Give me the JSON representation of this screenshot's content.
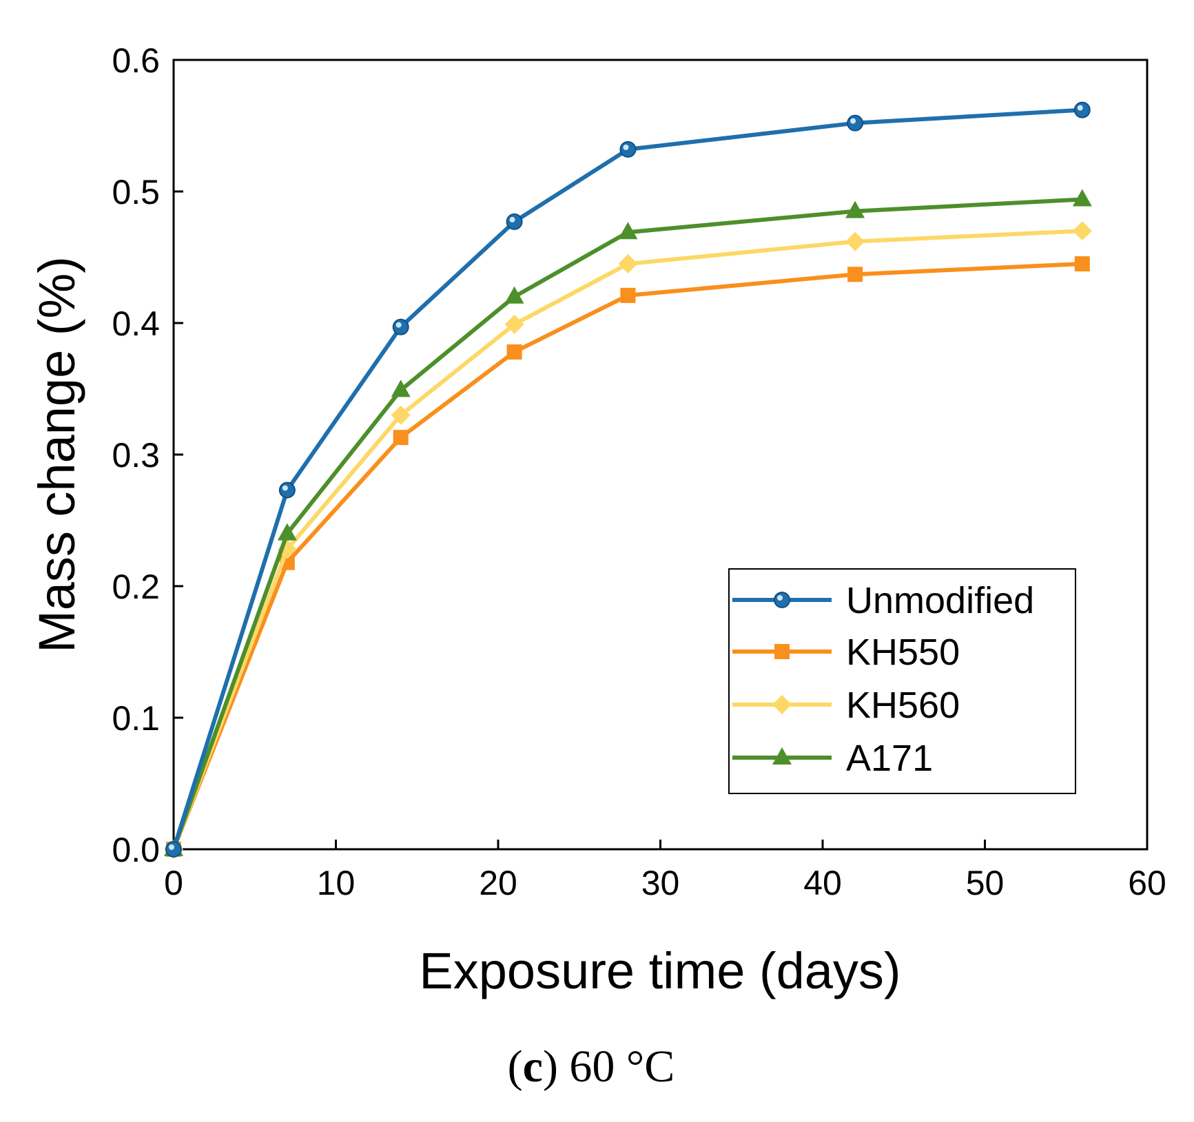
{
  "chart_data": {
    "type": "line",
    "title": "",
    "xlabel": "Exposure time (days)",
    "ylabel": "Mass change (%)",
    "xlim": [
      0,
      60
    ],
    "ylim": [
      0,
      0.6
    ],
    "xticks": [
      0,
      10,
      20,
      30,
      40,
      50,
      60
    ],
    "xtick_labels": [
      "0",
      "10",
      "20",
      "30",
      "40",
      "50",
      "60"
    ],
    "yticks": [
      0,
      0.1,
      0.2,
      0.3,
      0.4,
      0.5,
      0.6
    ],
    "ytick_labels": [
      "0.0",
      "0.1",
      "0.2",
      "0.3",
      "0.4",
      "0.5",
      "0.6"
    ],
    "grid": false,
    "legend_position": "bottom-right",
    "x": [
      0,
      7,
      14,
      21,
      28,
      42,
      56
    ],
    "series": [
      {
        "name": "Unmodified",
        "color": "#1f6fad",
        "marker": "circle",
        "values": [
          0,
          0.273,
          0.397,
          0.477,
          0.532,
          0.552,
          0.562
        ]
      },
      {
        "name": "KH550",
        "color": "#f98f1c",
        "marker": "square",
        "values": [
          0,
          0.218,
          0.313,
          0.378,
          0.421,
          0.437,
          0.445
        ]
      },
      {
        "name": "KH560",
        "color": "#fdd866",
        "marker": "diamond",
        "values": [
          0,
          0.228,
          0.33,
          0.399,
          0.445,
          0.462,
          0.47
        ]
      },
      {
        "name": "A171",
        "color": "#4d8f2a",
        "marker": "triangle",
        "values": [
          0,
          0.24,
          0.349,
          0.42,
          0.469,
          0.485,
          0.494
        ]
      }
    ]
  },
  "caption": {
    "open": "(",
    "letter": "c",
    "rest": ") 60 °C"
  }
}
